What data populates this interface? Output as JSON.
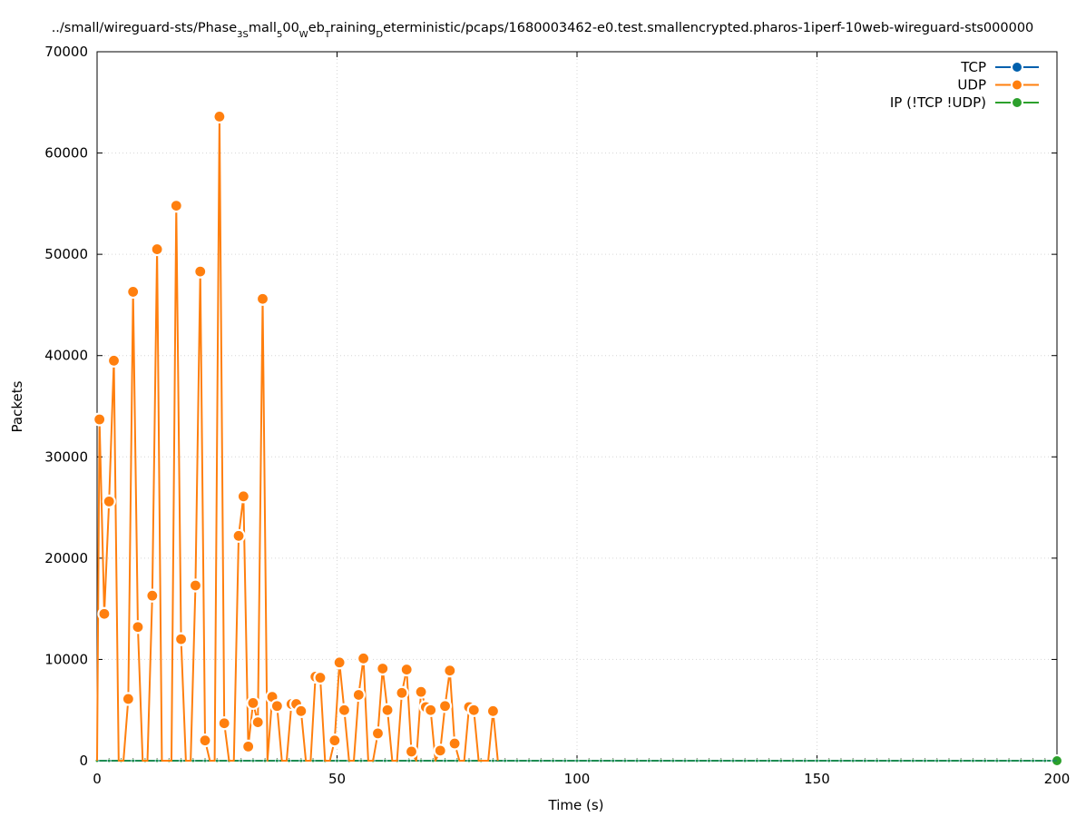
{
  "chart_data": {
    "type": "line",
    "title": "./small/wireguard-sts/Phase3Small500WebTrainingDeterministic/pcaps/1680003462-e0.test.smallencrypted.pharos-1iperf-10web-wireguard-sts000000",
    "title_parts": [
      {
        "text": "../small/wireguard-sts/Phase",
        "sub": false
      },
      {
        "text": "3S",
        "sub": true
      },
      {
        "text": "mall",
        "sub": false
      },
      {
        "text": "5",
        "sub": true
      },
      {
        "text": "00",
        "sub": false
      },
      {
        "text": "W",
        "sub": true
      },
      {
        "text": "eb",
        "sub": false
      },
      {
        "text": "T",
        "sub": true
      },
      {
        "text": "raining",
        "sub": false
      },
      {
        "text": "D",
        "sub": true
      },
      {
        "text": "eterministic/pcaps/1680003462-e0.test.smallencrypted.pharos-1iperf-10web-wireguard-sts000000",
        "sub": false
      }
    ],
    "xlabel": "Time (s)",
    "ylabel": "Packets",
    "xlim": [
      0,
      200
    ],
    "ylim": [
      0,
      70000
    ],
    "x_ticks": [
      0,
      50,
      100,
      150,
      200
    ],
    "y_ticks": [
      0,
      10000,
      20000,
      30000,
      40000,
      50000,
      60000,
      70000
    ],
    "grid": true,
    "legend_position": "top-right",
    "series": [
      {
        "name": "TCP",
        "color": "#0060ad",
        "x": [
          0,
          200
        ],
        "values": [
          0,
          0
        ]
      },
      {
        "name": "UDP",
        "color": "#ff7f0e",
        "x": [
          0,
          0.5,
          1.5,
          2.5,
          3.5,
          4.5,
          5.5,
          6.5,
          7.5,
          8.5,
          9.5,
          10.5,
          11.5,
          12.5,
          13.5,
          14.5,
          15.5,
          16.5,
          17.5,
          18.5,
          19.5,
          20.5,
          21.5,
          22.5,
          23.5,
          24.5,
          25.5,
          26.5,
          27.5,
          28.5,
          29.5,
          30.5,
          31.5,
          32.5,
          33.5,
          34.5,
          35.5,
          36.5,
          37.5,
          38.5,
          39.5,
          40.5,
          41.5,
          42.5,
          43.5,
          44.5,
          45.5,
          46.5,
          47.5,
          48.5,
          49.5,
          50.5,
          51.5,
          52.5,
          53.5,
          54.5,
          55.5,
          56.5,
          57.5,
          58.5,
          59.5,
          60.5,
          61.5,
          62.5,
          63.5,
          64.5,
          65.5,
          66.5,
          67.5,
          68.5,
          69.5,
          70.5,
          71.5,
          72.5,
          73.5,
          74.5,
          75.5,
          76.5,
          77.5,
          78.5,
          79.5,
          80.5,
          81.5,
          82.5,
          83.5
        ],
        "values": [
          0,
          33700,
          14500,
          25600,
          39500,
          0,
          0,
          6100,
          46300,
          13200,
          0,
          0,
          16300,
          50500,
          0,
          0,
          0,
          54800,
          12000,
          0,
          0,
          17300,
          48300,
          2000,
          0,
          0,
          63600,
          3700,
          0,
          0,
          22200,
          26100,
          1400,
          5700,
          3800,
          45600,
          0,
          6300,
          5400,
          0,
          0,
          5600,
          5600,
          4900,
          0,
          0,
          8300,
          8200,
          0,
          0,
          2000,
          9700,
          5000,
          0,
          0,
          6500,
          10100,
          0,
          0,
          2700,
          9100,
          5000,
          0,
          0,
          6700,
          9000,
          900,
          0,
          6800,
          5300,
          5000,
          0,
          1000,
          5400,
          8900,
          1700,
          0,
          0,
          5300,
          5000,
          0,
          0,
          0,
          4900,
          0
        ]
      },
      {
        "name": "IP (!TCP  !UDP)",
        "color": "#2ca02c",
        "x": [
          0,
          200
        ],
        "values": [
          0,
          0
        ]
      }
    ]
  }
}
